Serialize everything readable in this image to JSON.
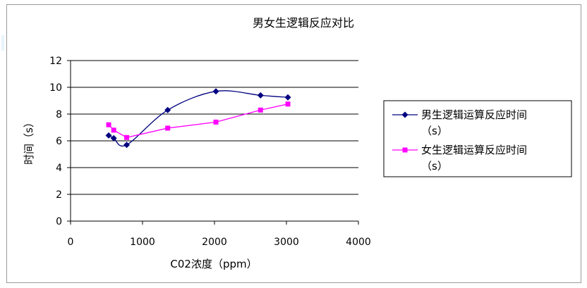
{
  "chart_data": {
    "type": "line",
    "title": "男女生逻辑反应对比",
    "xlabel": "C02浓度（ppm）",
    "ylabel": "时间（s）",
    "xlim": [
      0,
      4000
    ],
    "ylim": [
      0,
      12
    ],
    "xticks": [
      0,
      1000,
      2000,
      3000,
      4000
    ],
    "yticks": [
      0,
      2,
      4,
      6,
      8,
      10,
      12
    ],
    "grid": "horizontal",
    "legend_position": "right",
    "series": [
      {
        "name_line1": "男生逻辑运算反应时间",
        "name_line2": "（s）",
        "color": "#000080",
        "marker": "diamond",
        "smooth": true,
        "x": [
          530,
          600,
          780,
          1350,
          2020,
          2640,
          3020
        ],
        "y": [
          6.4,
          6.2,
          5.7,
          8.3,
          9.7,
          9.4,
          9.25
        ]
      },
      {
        "name_line1": "女生逻辑运算反应时间",
        "name_line2": "（s）",
        "color": "#ff00ff",
        "marker": "square",
        "smooth": false,
        "x": [
          530,
          600,
          780,
          1350,
          2020,
          2640,
          3020
        ],
        "y": [
          7.2,
          6.8,
          6.25,
          6.95,
          7.4,
          8.3,
          8.75
        ]
      }
    ]
  }
}
